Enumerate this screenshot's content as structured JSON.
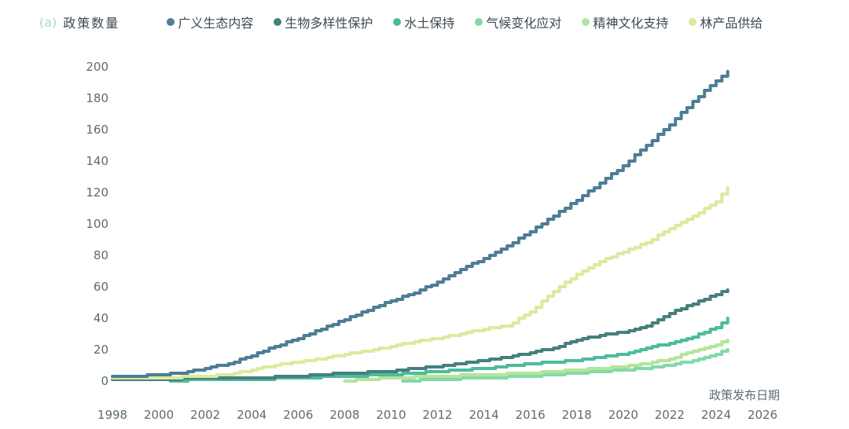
{
  "header": {
    "panel_label": "(a)",
    "panel_label_color": "#a7dcb5",
    "title": "政策数量"
  },
  "axes": {
    "x_label": "政策发布日期"
  },
  "chart_data": {
    "type": "line",
    "variant": "cumulative-step",
    "title": "政策数量",
    "xlabel": "政策发布日期",
    "ylabel": "政策数量",
    "xlim": [
      1997,
      2027
    ],
    "ylim": [
      0,
      200
    ],
    "xticks": [
      1998,
      2000,
      2002,
      2004,
      2006,
      2008,
      2010,
      2012,
      2014,
      2016,
      2018,
      2020,
      2022,
      2024,
      2026
    ],
    "yticks": [
      0,
      20,
      40,
      60,
      80,
      100,
      120,
      140,
      160,
      180,
      200
    ],
    "grid": false,
    "legend_position": "top",
    "draw_order": [
      3,
      4,
      2,
      1,
      5,
      0
    ],
    "series": [
      {
        "name": "广义生态内容",
        "color": "#4d7e95",
        "points": [
          [
            1998,
            3
          ],
          [
            1999,
            3
          ],
          [
            2000,
            4
          ],
          [
            2001,
            5
          ],
          [
            2002,
            8
          ],
          [
            2003,
            11
          ],
          [
            2004,
            16
          ],
          [
            2005,
            22
          ],
          [
            2006,
            27
          ],
          [
            2007,
            33
          ],
          [
            2008,
            39
          ],
          [
            2009,
            45
          ],
          [
            2010,
            51
          ],
          [
            2011,
            56
          ],
          [
            2012,
            63
          ],
          [
            2013,
            71
          ],
          [
            2014,
            78
          ],
          [
            2015,
            86
          ],
          [
            2016,
            95
          ],
          [
            2017,
            105
          ],
          [
            2018,
            115
          ],
          [
            2019,
            126
          ],
          [
            2020,
            137
          ],
          [
            2021,
            150
          ],
          [
            2022,
            163
          ],
          [
            2023,
            178
          ],
          [
            2024,
            191
          ],
          [
            2024.5,
            197
          ]
        ]
      },
      {
        "name": "生物多样性保护",
        "color": "#45807e",
        "points": [
          [
            1998,
            1
          ],
          [
            2000,
            1
          ],
          [
            2002,
            2
          ],
          [
            2004,
            2
          ],
          [
            2006,
            3
          ],
          [
            2008,
            5
          ],
          [
            2010,
            6
          ],
          [
            2011,
            8
          ],
          [
            2012,
            9
          ],
          [
            2013,
            11
          ],
          [
            2014,
            13
          ],
          [
            2015,
            15
          ],
          [
            2016,
            18
          ],
          [
            2017,
            21
          ],
          [
            2018,
            26
          ],
          [
            2019,
            29
          ],
          [
            2020,
            31
          ],
          [
            2021,
            35
          ],
          [
            2022,
            43
          ],
          [
            2023,
            49
          ],
          [
            2024,
            55
          ],
          [
            2024.5,
            58
          ]
        ]
      },
      {
        "name": "水土保持",
        "color": "#4cbc9e",
        "points": [
          [
            2000.5,
            0
          ],
          [
            2002,
            1
          ],
          [
            2004,
            1
          ],
          [
            2006,
            2
          ],
          [
            2008,
            3
          ],
          [
            2010,
            4
          ],
          [
            2012,
            6
          ],
          [
            2014,
            8
          ],
          [
            2016,
            11
          ],
          [
            2018,
            13
          ],
          [
            2019,
            15
          ],
          [
            2020,
            17
          ],
          [
            2021,
            21
          ],
          [
            2022,
            24
          ],
          [
            2023,
            28
          ],
          [
            2024,
            34
          ],
          [
            2024.5,
            40
          ]
        ]
      },
      {
        "name": "气候变化应对",
        "color": "#83d9a9",
        "points": [
          [
            2010.5,
            0
          ],
          [
            2012,
            1
          ],
          [
            2014,
            2
          ],
          [
            2016,
            3
          ],
          [
            2018,
            5
          ],
          [
            2020,
            7
          ],
          [
            2021,
            8
          ],
          [
            2022,
            10
          ],
          [
            2023,
            13
          ],
          [
            2024,
            17
          ],
          [
            2024.5,
            20
          ]
        ]
      },
      {
        "name": "精神文化支持",
        "color": "#b3e59b",
        "points": [
          [
            2008,
            0
          ],
          [
            2009,
            1
          ],
          [
            2010,
            2
          ],
          [
            2012,
            3
          ],
          [
            2014,
            4
          ],
          [
            2016,
            5
          ],
          [
            2018,
            7
          ],
          [
            2020,
            9
          ],
          [
            2021,
            11
          ],
          [
            2022,
            14
          ],
          [
            2023,
            19
          ],
          [
            2024,
            23
          ],
          [
            2024.5,
            26
          ]
        ]
      },
      {
        "name": "林产品供给",
        "color": "#dcea9f",
        "points": [
          [
            1998,
            2
          ],
          [
            2000,
            2
          ],
          [
            2002,
            3
          ],
          [
            2003,
            4
          ],
          [
            2004,
            7
          ],
          [
            2005,
            10
          ],
          [
            2006,
            12
          ],
          [
            2007,
            14
          ],
          [
            2008,
            17
          ],
          [
            2009,
            19
          ],
          [
            2010,
            22
          ],
          [
            2011,
            25
          ],
          [
            2012,
            27
          ],
          [
            2013,
            30
          ],
          [
            2014,
            33
          ],
          [
            2015,
            35
          ],
          [
            2016,
            44
          ],
          [
            2017,
            57
          ],
          [
            2018,
            68
          ],
          [
            2019,
            76
          ],
          [
            2020,
            82
          ],
          [
            2021,
            88
          ],
          [
            2022,
            97
          ],
          [
            2023,
            105
          ],
          [
            2024,
            114
          ],
          [
            2024.5,
            123
          ]
        ]
      }
    ]
  }
}
